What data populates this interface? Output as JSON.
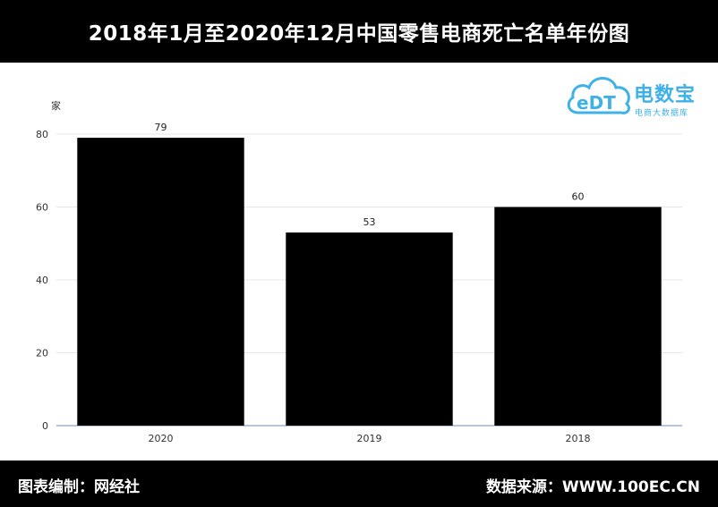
{
  "header": {
    "title": "2018年1月至2020年12月中国零售电商死亡名单年份图"
  },
  "footer": {
    "left_text": "图表编制：网经社",
    "right_text": "数据来源：WWW.100EC.CN"
  },
  "logo": {
    "icon_text": "eDT",
    "name": "电数宝",
    "subtitle": "电商大数据库",
    "color": "#3db1e8"
  },
  "chart_data": {
    "type": "bar",
    "title": "2018年1月至2020年12月中国零售电商死亡名单年份图",
    "categories": [
      "2020",
      "2019",
      "2018"
    ],
    "values": [
      79,
      53,
      60
    ],
    "ylabel": "家",
    "xlabel": "",
    "ylim": [
      0,
      80
    ],
    "yticks": [
      0,
      20,
      40,
      60,
      80
    ],
    "bar_color": "#000000",
    "grid": true,
    "legend": "none"
  }
}
